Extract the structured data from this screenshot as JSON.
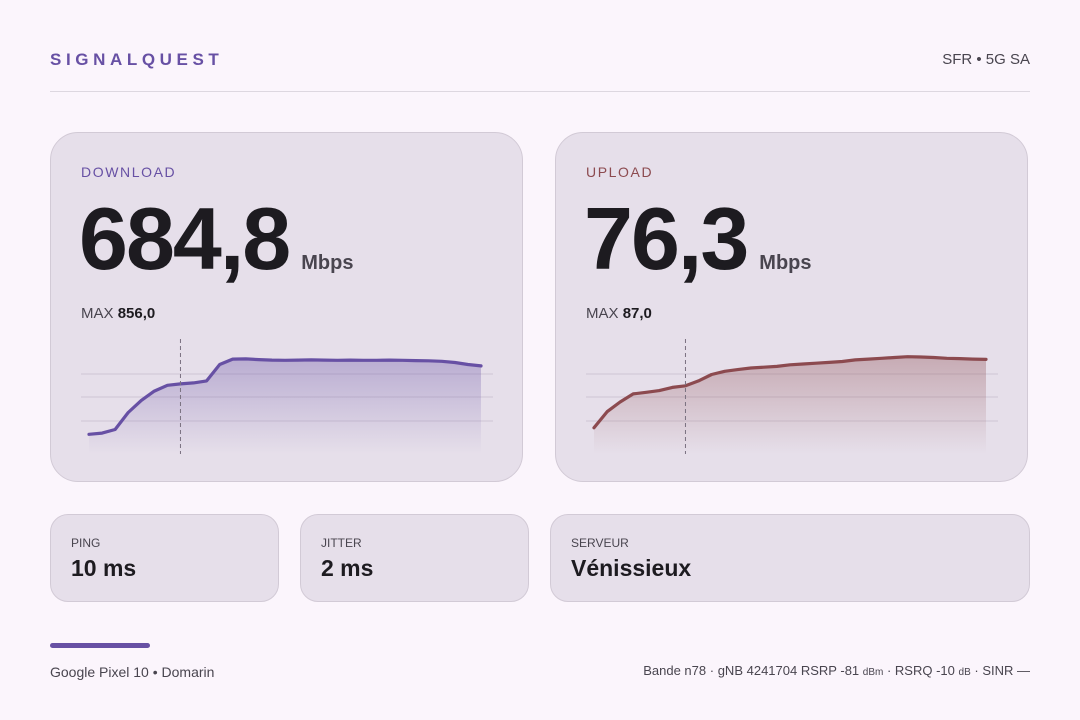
{
  "brand": "SIGNALQUEST",
  "network": "SFR • 5G SA",
  "download": {
    "label": "DOWNLOAD",
    "value": "684,8",
    "unit": "Mbps",
    "max_label": "MAX",
    "max_value": "856,0",
    "color": "#6750a4"
  },
  "upload": {
    "label": "UPLOAD",
    "value": "76,3",
    "unit": "Mbps",
    "max_label": "MAX",
    "max_value": "87,0",
    "color": "#8c4a4f"
  },
  "stats": {
    "ping": {
      "label": "PING",
      "value": "10 ms"
    },
    "jitter": {
      "label": "JITTER",
      "value": "2 ms"
    },
    "server": {
      "label": "SERVEUR",
      "value": "Vénissieux"
    }
  },
  "footer": {
    "device": "Google Pixel 10 • Domarin",
    "band": "Bande n78",
    "gnb": "gNB 4241704",
    "rsrp_label": "RSRP",
    "rsrp_value": "-81",
    "rsrp_unit": "dBm",
    "rsrq_label": "RSRQ",
    "rsrq_value": "-10",
    "rsrq_unit": "dB",
    "sinr_label": "SINR",
    "sinr_value": "—"
  },
  "chart_data": [
    {
      "type": "area",
      "series": [
        {
          "values": [
            540,
            545,
            560,
            630,
            680,
            718,
            742,
            748,
            752,
            760,
            828,
            850,
            851,
            848,
            846,
            845,
            846,
            847,
            846,
            845,
            846,
            845,
            845,
            846,
            845,
            844,
            843,
            841,
            836,
            828,
            822
          ]
        }
      ],
      "ylim": [
        500,
        900
      ],
      "marker_index": 7
    },
    {
      "type": "area",
      "series": [
        {
          "values": [
            40,
            50,
            56,
            61,
            62,
            63,
            65,
            66,
            69,
            73,
            75,
            76,
            77,
            77.5,
            78,
            79,
            79.5,
            80,
            80.5,
            81,
            82,
            82.5,
            83,
            83.5,
            84,
            83.8,
            83.5,
            83,
            82.8,
            82.5,
            82.3
          ]
        }
      ],
      "ylim": [
        30,
        90
      ],
      "marker_index": 7
    }
  ]
}
